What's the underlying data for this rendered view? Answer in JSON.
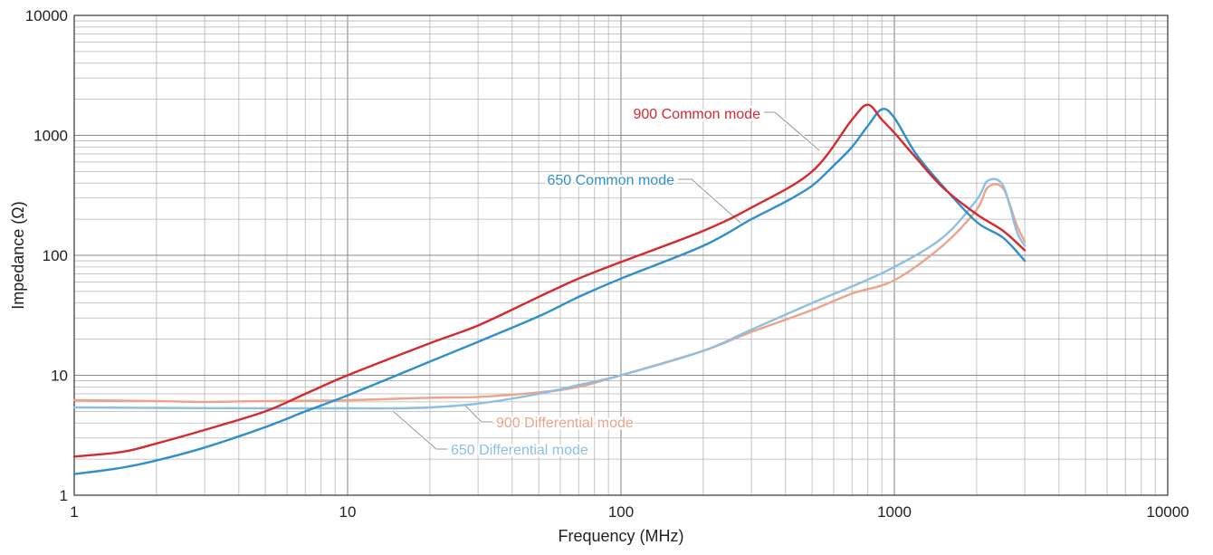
{
  "chart_data": {
    "type": "line",
    "xlabel": "Frequency (MHz)",
    "ylabel": "Impedance (Ω)",
    "x_scale": "log",
    "y_scale": "log",
    "xlim": [
      1,
      10000
    ],
    "ylim": [
      1,
      10000
    ],
    "grid": true,
    "x_ticks": [
      "1",
      "10",
      "100",
      "1000",
      "10000"
    ],
    "y_ticks": [
      "1",
      "10",
      "100",
      "1000",
      "10000"
    ],
    "series": [
      {
        "name": "900 Common mode",
        "color": "#d42a2f",
        "points": [
          [
            1,
            2.1
          ],
          [
            1.5,
            2.3
          ],
          [
            2,
            2.7
          ],
          [
            3,
            3.5
          ],
          [
            5,
            5.0
          ],
          [
            7,
            7.0
          ],
          [
            10,
            10.0
          ],
          [
            20,
            18.5
          ],
          [
            30,
            26
          ],
          [
            50,
            45
          ],
          [
            70,
            64
          ],
          [
            100,
            88
          ],
          [
            200,
            160
          ],
          [
            300,
            250
          ],
          [
            500,
            500
          ],
          [
            700,
            1350
          ],
          [
            800,
            1800
          ],
          [
            900,
            1350
          ],
          [
            1000,
            1050
          ],
          [
            1200,
            650
          ],
          [
            1500,
            370
          ],
          [
            2000,
            220
          ],
          [
            2500,
            160
          ],
          [
            3000,
            110
          ]
        ]
      },
      {
        "name": "650 Common mode",
        "color": "#2e8fcb",
        "points": [
          [
            1,
            1.5
          ],
          [
            1.5,
            1.7
          ],
          [
            2,
            1.95
          ],
          [
            3,
            2.5
          ],
          [
            5,
            3.7
          ],
          [
            7,
            5.0
          ],
          [
            10,
            6.8
          ],
          [
            20,
            13
          ],
          [
            30,
            19
          ],
          [
            50,
            31
          ],
          [
            70,
            45
          ],
          [
            100,
            64
          ],
          [
            200,
            120
          ],
          [
            300,
            200
          ],
          [
            400,
            280
          ],
          [
            500,
            380
          ],
          [
            600,
            560
          ],
          [
            700,
            800
          ],
          [
            800,
            1200
          ],
          [
            900,
            1650
          ],
          [
            1000,
            1400
          ],
          [
            1200,
            700
          ],
          [
            1500,
            380
          ],
          [
            2000,
            190
          ],
          [
            2500,
            140
          ],
          [
            3000,
            90
          ]
        ]
      },
      {
        "name": "900 Differential mode",
        "color": "#eda387",
        "points": [
          [
            1,
            6.2
          ],
          [
            2,
            6.1
          ],
          [
            3,
            6.0
          ],
          [
            5,
            6.1
          ],
          [
            10,
            6.2
          ],
          [
            20,
            6.5
          ],
          [
            30,
            6.6
          ],
          [
            50,
            7.2
          ],
          [
            70,
            8.0
          ],
          [
            100,
            10
          ],
          [
            200,
            16
          ],
          [
            300,
            23
          ],
          [
            500,
            35
          ],
          [
            700,
            48
          ],
          [
            1000,
            62
          ],
          [
            1500,
            120
          ],
          [
            2000,
            240
          ],
          [
            2200,
            370
          ],
          [
            2500,
            360
          ],
          [
            2800,
            180
          ],
          [
            3000,
            130
          ]
        ]
      },
      {
        "name": "650 Differential mode",
        "color": "#8cbfe3",
        "points": [
          [
            1,
            5.4
          ],
          [
            2,
            5.35
          ],
          [
            5,
            5.3
          ],
          [
            10,
            5.3
          ],
          [
            15,
            5.3
          ],
          [
            20,
            5.4
          ],
          [
            30,
            5.8
          ],
          [
            50,
            7.0
          ],
          [
            70,
            8.3
          ],
          [
            100,
            10
          ],
          [
            200,
            16
          ],
          [
            300,
            24
          ],
          [
            500,
            40
          ],
          [
            700,
            55
          ],
          [
            1000,
            80
          ],
          [
            1500,
            140
          ],
          [
            2000,
            290
          ],
          [
            2200,
            420
          ],
          [
            2500,
            380
          ],
          [
            2800,
            160
          ],
          [
            3000,
            120
          ]
        ]
      }
    ]
  }
}
